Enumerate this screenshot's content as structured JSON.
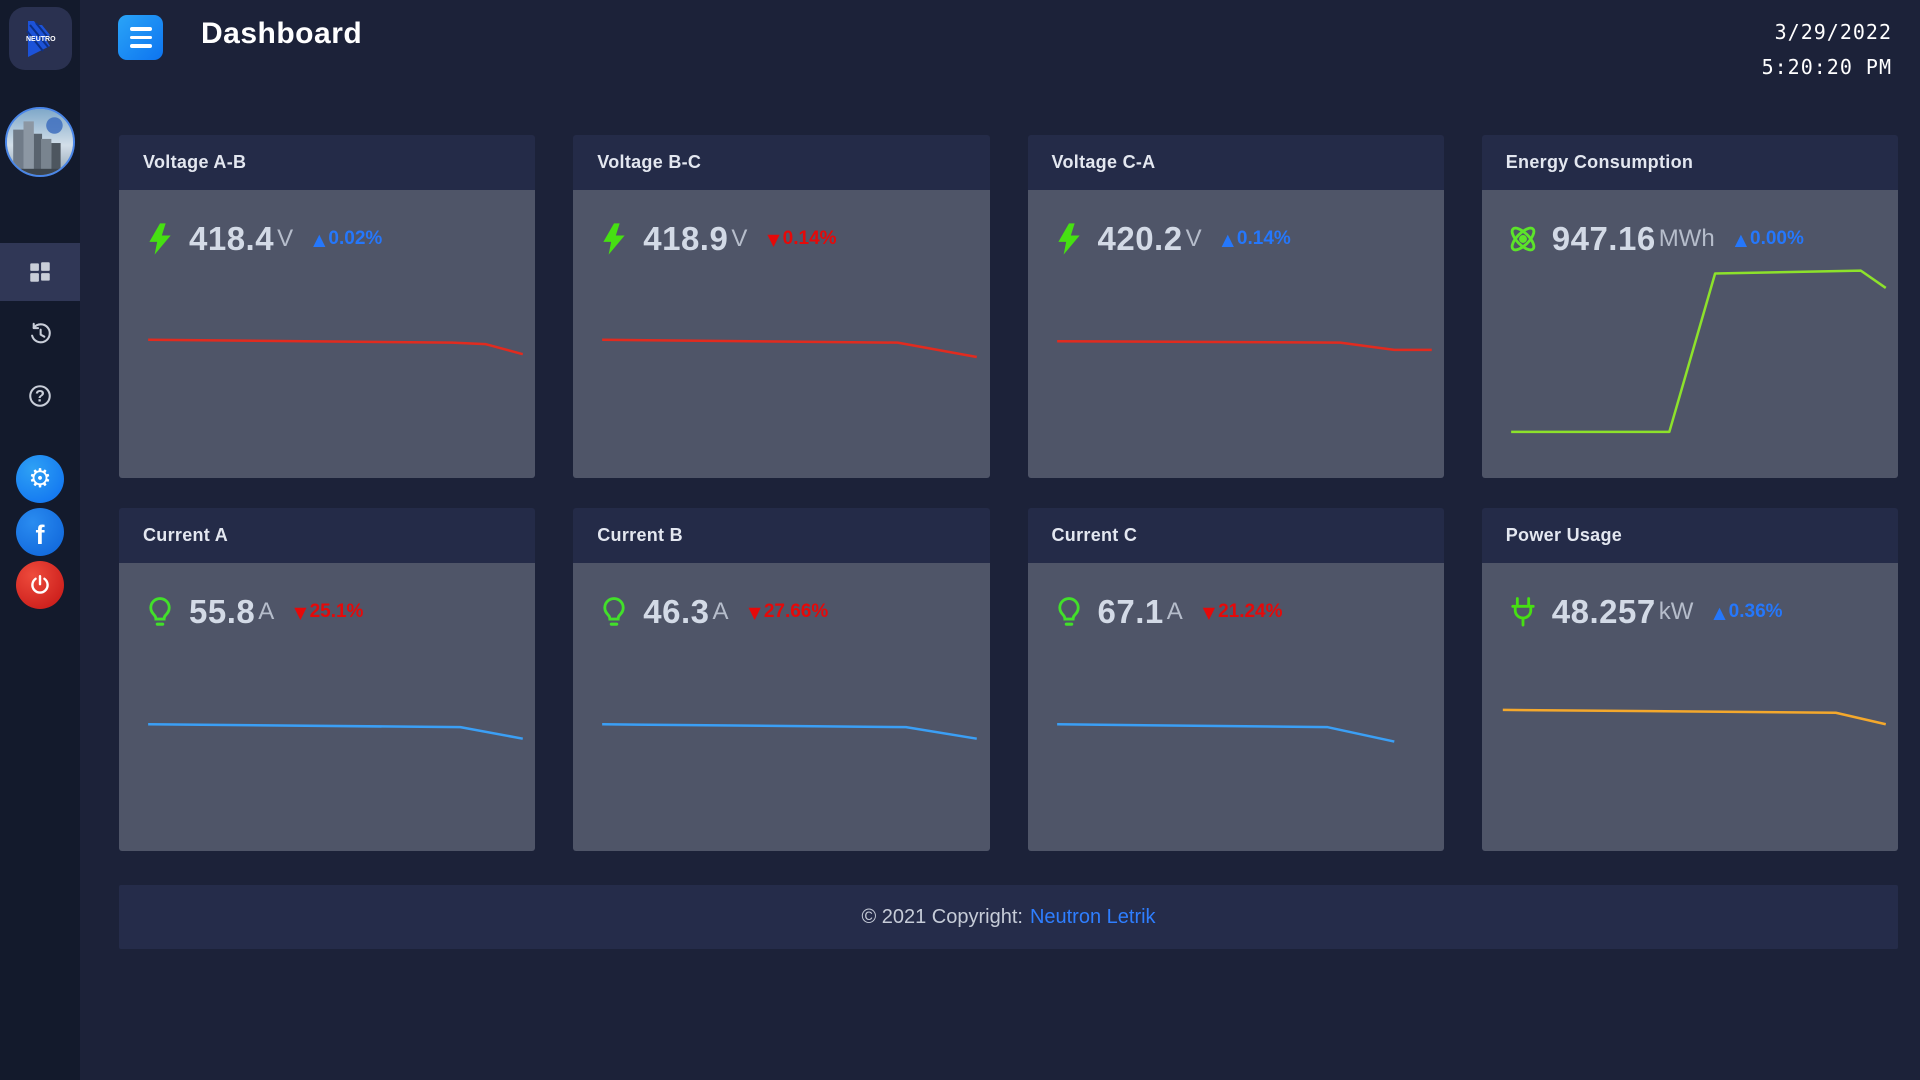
{
  "header": {
    "title": "Dashboard",
    "date": "3/29/2022",
    "time": "5:20:20 PM"
  },
  "logo": {
    "brand": "NEUTRO"
  },
  "footer": {
    "text": "© 2021 Copyright:",
    "link": "Neutron Letrik"
  },
  "cards": [
    {
      "title": "Voltage A-B",
      "icon": "bolt",
      "value": "418.4",
      "unit": "V",
      "delta_arrow": "▲",
      "delta": "0.02%",
      "delta_color": "#2577fb",
      "line_color": "#e12b1f",
      "spark": [
        [
          7,
          52
        ],
        [
          80,
          53
        ],
        [
          88,
          53.5
        ],
        [
          97,
          57
        ]
      ]
    },
    {
      "title": "Voltage B-C",
      "icon": "bolt",
      "value": "418.9",
      "unit": "V",
      "delta_arrow": "▼",
      "delta": "0.14%",
      "delta_color": "#e60909",
      "line_color": "#e12b1f",
      "spark": [
        [
          7,
          52
        ],
        [
          78,
          53
        ],
        [
          97,
          58
        ]
      ]
    },
    {
      "title": "Voltage C-A",
      "icon": "bolt",
      "value": "420.2",
      "unit": "V",
      "delta_arrow": "▲",
      "delta": "0.14%",
      "delta_color": "#2577fb",
      "line_color": "#e12b1f",
      "spark": [
        [
          7,
          52.5
        ],
        [
          75,
          53
        ],
        [
          88,
          55.5
        ],
        [
          97,
          55.5
        ]
      ]
    },
    {
      "title": "Energy Consumption",
      "icon": "atom",
      "value": "947.16",
      "unit": "MWh",
      "delta_arrow": "▲",
      "delta": "0.00%",
      "delta_color": "#2577fb",
      "line_color": "#8de22b",
      "spark": [
        [
          7,
          84
        ],
        [
          45,
          84
        ],
        [
          56,
          29
        ],
        [
          91,
          28
        ],
        [
          97,
          34
        ]
      ]
    },
    {
      "title": "Current A",
      "icon": "bulb",
      "value": "55.8",
      "unit": "A",
      "delta_arrow": "▼",
      "delta": "25.1%",
      "delta_color": "#e60909",
      "line_color": "#3b9ff5",
      "spark": [
        [
          7,
          56
        ],
        [
          82,
          57
        ],
        [
          97,
          61
        ]
      ]
    },
    {
      "title": "Current B",
      "icon": "bulb",
      "value": "46.3",
      "unit": "A",
      "delta_arrow": "▼",
      "delta": "27.66%",
      "delta_color": "#e60909",
      "line_color": "#3b9ff5",
      "spark": [
        [
          7,
          56
        ],
        [
          80,
          57
        ],
        [
          97,
          61
        ]
      ]
    },
    {
      "title": "Current C",
      "icon": "bulb",
      "value": "67.1",
      "unit": "A",
      "delta_arrow": "▼",
      "delta": "21.24%",
      "delta_color": "#e60909",
      "line_color": "#3b9ff5",
      "spark": [
        [
          7,
          56
        ],
        [
          72,
          57
        ],
        [
          88,
          62
        ]
      ]
    },
    {
      "title": "Power Usage",
      "icon": "plug",
      "value": "48.257",
      "unit": "kW",
      "delta_arrow": "▲",
      "delta": "0.36%",
      "delta_color": "#2577fb",
      "line_color": "#f4a82c",
      "spark": [
        [
          5,
          51
        ],
        [
          85,
          52
        ],
        [
          97,
          56
        ]
      ]
    }
  ]
}
